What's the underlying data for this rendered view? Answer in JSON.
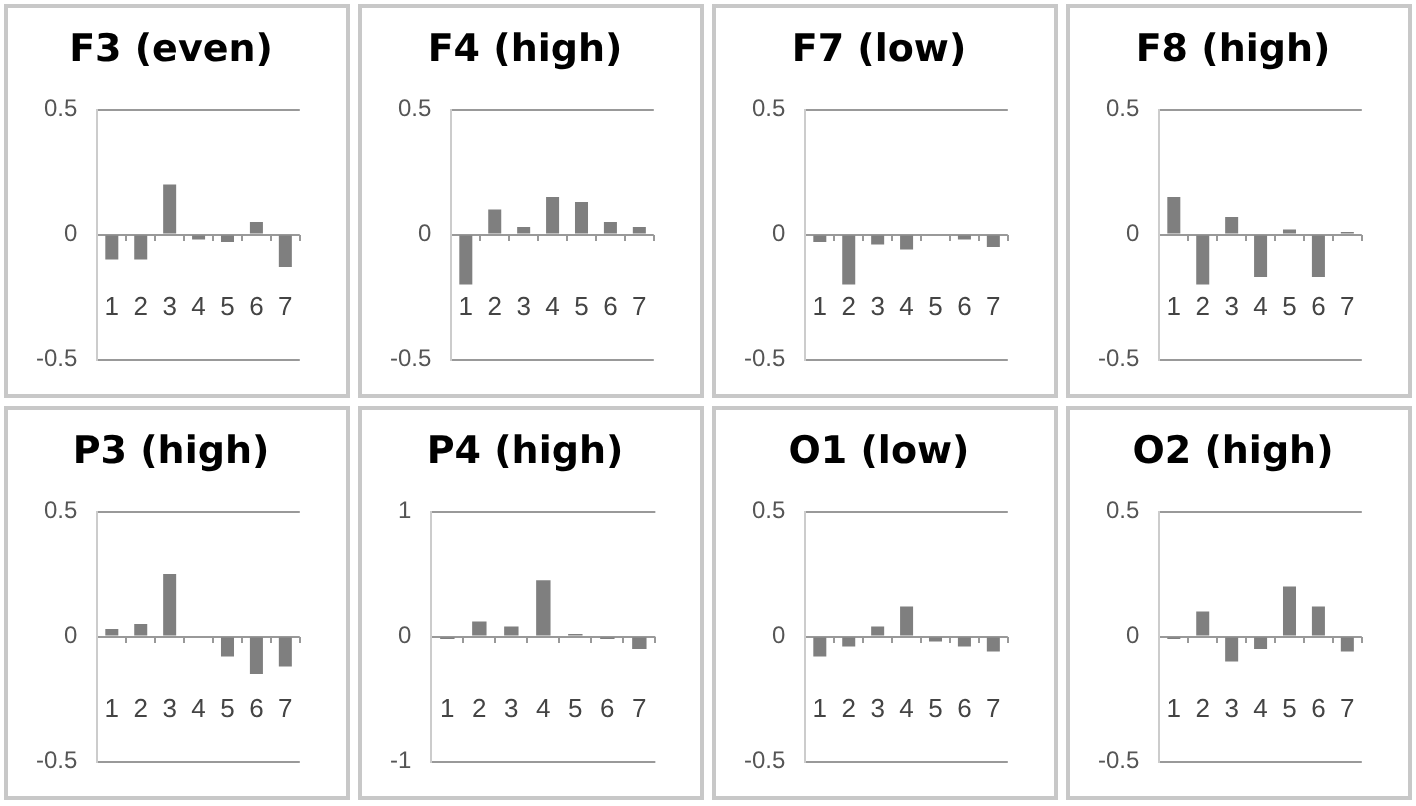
{
  "chart_data": [
    {
      "type": "bar",
      "title": "F3 (even)",
      "categories": [
        "1",
        "2",
        "3",
        "4",
        "5",
        "6",
        "7"
      ],
      "values": [
        -0.1,
        -0.1,
        0.2,
        -0.02,
        -0.03,
        0.05,
        -0.13
      ],
      "color": "#7f7f7f",
      "ylim": [
        -0.5,
        0.5
      ],
      "yticks": [
        -0.5,
        0,
        0.5
      ],
      "grid": "y",
      "legend": false
    },
    {
      "type": "bar",
      "title": "F4 (high)",
      "categories": [
        "1",
        "2",
        "3",
        "4",
        "5",
        "6",
        "7"
      ],
      "values": [
        -0.2,
        0.1,
        0.03,
        0.15,
        0.13,
        0.05,
        0.03
      ],
      "color": "#7f7f7f",
      "ylim": [
        -0.5,
        0.5
      ],
      "yticks": [
        -0.5,
        0,
        0.5
      ],
      "grid": "y",
      "legend": false
    },
    {
      "type": "bar",
      "title": "F7 (low)",
      "categories": [
        "1",
        "2",
        "3",
        "4",
        "5",
        "6",
        "7"
      ],
      "values": [
        -0.03,
        -0.2,
        -0.04,
        -0.06,
        0,
        -0.02,
        -0.05
      ],
      "color": "#7f7f7f",
      "ylim": [
        -0.5,
        0.5
      ],
      "yticks": [
        -0.5,
        0,
        0.5
      ],
      "grid": "y",
      "legend": false
    },
    {
      "type": "bar",
      "title": "F8 (high)",
      "categories": [
        "1",
        "2",
        "3",
        "4",
        "5",
        "6",
        "7"
      ],
      "values": [
        0.15,
        -0.2,
        0.07,
        -0.17,
        0.02,
        -0.17,
        0.01
      ],
      "color": "#7f7f7f",
      "ylim": [
        -0.5,
        0.5
      ],
      "yticks": [
        -0.5,
        0,
        0.5
      ],
      "grid": "y",
      "legend": false
    },
    {
      "type": "bar",
      "title": "P3 (high)",
      "categories": [
        "1",
        "2",
        "3",
        "4",
        "5",
        "6",
        "7"
      ],
      "values": [
        0.03,
        0.05,
        0.25,
        0,
        -0.08,
        -0.15,
        -0.12
      ],
      "color": "#7f7f7f",
      "ylim": [
        -0.5,
        0.5
      ],
      "yticks": [
        -0.5,
        0,
        0.5
      ],
      "grid": "y",
      "legend": false
    },
    {
      "type": "bar",
      "title": "P4 (high)",
      "categories": [
        "1",
        "2",
        "3",
        "4",
        "5",
        "6",
        "7"
      ],
      "values": [
        -0.02,
        0.12,
        0.08,
        0.45,
        0.02,
        -0.02,
        -0.1
      ],
      "color": "#7f7f7f",
      "ylim": [
        -1,
        1
      ],
      "yticks": [
        -1,
        0,
        1
      ],
      "grid": "y",
      "legend": false
    },
    {
      "type": "bar",
      "title": "O1 (low)",
      "categories": [
        "1",
        "2",
        "3",
        "4",
        "5",
        "6",
        "7"
      ],
      "values": [
        -0.08,
        -0.04,
        0.04,
        0.12,
        -0.02,
        -0.04,
        -0.06
      ],
      "color": "#7f7f7f",
      "ylim": [
        -0.5,
        0.5
      ],
      "yticks": [
        -0.5,
        0,
        0.5
      ],
      "grid": "y",
      "legend": false
    },
    {
      "type": "bar",
      "title": "O2 (high)",
      "categories": [
        "1",
        "2",
        "3",
        "4",
        "5",
        "6",
        "7"
      ],
      "values": [
        -0.01,
        0.1,
        -0.1,
        -0.05,
        0.2,
        0.12,
        -0.06
      ],
      "color": "#7f7f7f",
      "ylim": [
        -0.5,
        0.5
      ],
      "yticks": [
        -0.5,
        0,
        0.5
      ],
      "grid": "y",
      "legend": false
    }
  ]
}
